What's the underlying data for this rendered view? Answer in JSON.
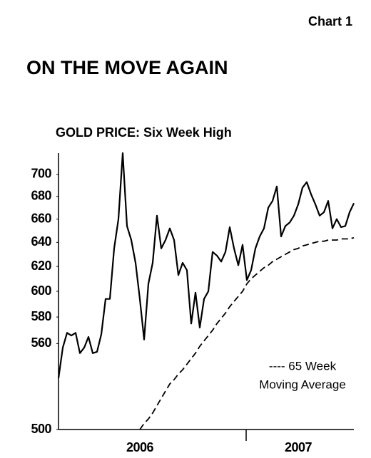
{
  "chart_data": {
    "type": "line",
    "corner_label": "Chart 1",
    "title": "ON THE MOVE AGAIN",
    "subtitle": "GOLD PRICE: Six Week High",
    "legend_text": [
      "---- 65 Week",
      "Moving Average"
    ],
    "log_scale": true,
    "ylim": [
      500,
      720
    ],
    "yticks": [
      500,
      560,
      580,
      600,
      620,
      640,
      660,
      680,
      700
    ],
    "xticks": [
      44
    ],
    "categories": [
      null,
      null,
      null,
      null,
      null,
      null,
      null,
      null,
      null,
      null,
      null,
      null,
      null,
      null,
      null,
      null,
      null,
      null,
      null,
      "2006",
      null,
      null,
      null,
      null,
      null,
      null,
      null,
      null,
      null,
      null,
      null,
      null,
      null,
      null,
      null,
      null,
      null,
      null,
      null,
      null,
      null,
      null,
      null,
      null,
      null,
      null,
      null,
      null,
      null,
      null,
      null,
      null,
      null,
      null,
      null,
      null,
      "2007",
      null,
      null,
      null,
      null,
      null,
      null,
      null,
      null,
      null,
      null,
      null,
      null,
      null
    ],
    "series": [
      {
        "color": "#000000",
        "dash": false,
        "values": [
          535,
          557,
          568,
          566,
          568,
          553,
          557,
          565,
          553,
          554,
          567,
          594,
          594,
          635,
          660,
          720,
          654,
          642,
          623,
          594,
          563,
          606,
          623,
          663,
          635,
          642,
          652,
          642,
          613,
          623,
          617,
          575,
          599,
          572,
          594,
          600,
          632,
          629,
          624,
          632,
          653,
          635,
          621,
          638,
          609,
          617,
          635,
          645,
          652,
          670,
          676,
          689,
          645,
          654,
          657,
          663,
          673,
          688,
          693,
          682,
          673,
          663,
          666,
          676,
          652,
          660,
          653,
          654,
          666,
          674
        ]
      },
      {
        "color": "#000000",
        "dash": true,
        "values": [
          null,
          null,
          null,
          null,
          null,
          null,
          null,
          null,
          null,
          null,
          null,
          null,
          null,
          null,
          null,
          null,
          null,
          null,
          null,
          500,
          504,
          507,
          511,
          516,
          521,
          526,
          531,
          534,
          538,
          541,
          545,
          549,
          553,
          558,
          562,
          566,
          570,
          575,
          579,
          583,
          588,
          592,
          596,
          600,
          606,
          610,
          613,
          616,
          619,
          621,
          624,
          626,
          628,
          630,
          632,
          634,
          635,
          637,
          638,
          639,
          640,
          641,
          641,
          642,
          642,
          642,
          643,
          643,
          643,
          644
        ]
      }
    ]
  }
}
